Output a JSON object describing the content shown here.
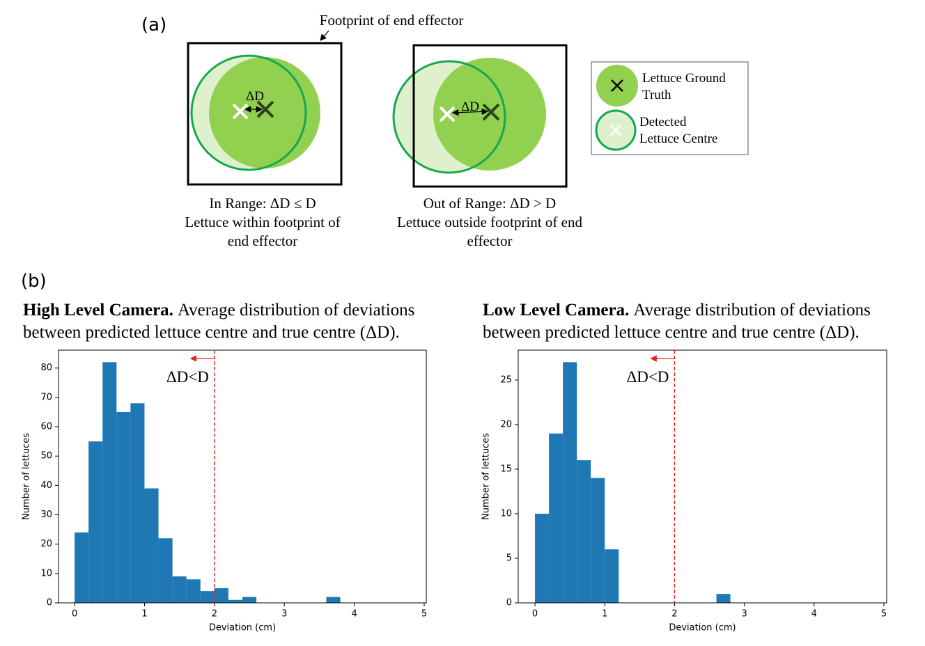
{
  "diagram": {
    "panel_label": "(a)",
    "footprint_label": "Footprint of end effector",
    "in_range": {
      "delta_label": "ΔD",
      "caption": [
        "In Range: ΔD ≤ D",
        "Lettuce within footprint of",
        "end effector"
      ]
    },
    "out_range": {
      "delta_label": "ΔD",
      "caption": [
        "Out of Range: ΔD > D",
        "Lettuce outside footprint of end",
        "effector"
      ]
    },
    "legend": {
      "ground_truth": [
        "Lettuce Ground",
        "Truth"
      ],
      "detected": [
        "Detected",
        "Lettuce Centre"
      ]
    }
  },
  "panel_b_label": "(b)",
  "chart_data": [
    {
      "type": "histogram",
      "title_bold": "High Level Camera.",
      "title": [
        "Average distribution of deviations",
        "between predicted lettuce centre and true centre (ΔD)."
      ],
      "x_label": "Deviation (cm)",
      "y_label": "Number of lettuces",
      "color": "#1f77b4",
      "bins": [
        0,
        0.2,
        0.4,
        0.6,
        0.8,
        1.0,
        1.2,
        1.4,
        1.6,
        1.8,
        2.0,
        2.2,
        2.4,
        2.6,
        2.8,
        3.0,
        3.2,
        3.4,
        3.6,
        3.8
      ],
      "values": [
        24,
        55,
        82,
        65,
        68,
        39,
        22,
        9,
        8,
        4,
        5,
        1,
        2,
        0,
        0,
        0,
        0,
        0,
        2
      ],
      "xlim": [
        -0.23,
        5.03
      ],
      "xticks": [
        0,
        1,
        2,
        3,
        4,
        5
      ],
      "ylim": [
        0,
        86.1
      ],
      "yticks": [
        0,
        10,
        20,
        30,
        40,
        50,
        60,
        70,
        80
      ],
      "threshold": 2,
      "threshold_label": "ΔD<D",
      "threshold_color": "#e8201c"
    },
    {
      "type": "histogram",
      "title_bold": "Low Level Camera.",
      "title": [
        "Average distribution of deviations",
        "between predicted lettuce centre and true centre (ΔD)."
      ],
      "x_label": "Deviation (cm)",
      "y_label": "Number of lettuces",
      "color": "#1f77b4",
      "bins": [
        0,
        0.2,
        0.4,
        0.6,
        0.8,
        1.0,
        1.2,
        1.4,
        1.6,
        1.8,
        2.0,
        2.2,
        2.4,
        2.6,
        2.8
      ],
      "values": [
        10,
        19,
        27,
        16,
        14,
        6,
        0,
        0,
        0,
        0,
        0,
        0,
        0,
        1
      ],
      "xlim": [
        -0.24,
        5.04
      ],
      "xticks": [
        0,
        1,
        2,
        3,
        4,
        5
      ],
      "ylim": [
        0,
        28.35
      ],
      "yticks": [
        0,
        5,
        10,
        15,
        20,
        25
      ],
      "threshold": 2,
      "threshold_label": "ΔD<D",
      "threshold_color": "#e8201c"
    }
  ]
}
